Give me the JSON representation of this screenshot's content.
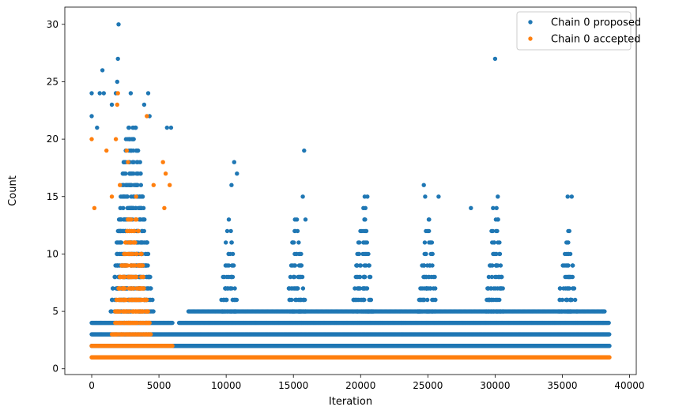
{
  "chart_data": {
    "type": "scatter",
    "title": "",
    "xlabel": "Iteration",
    "ylabel": "Count",
    "xlim": [
      -2000,
      40500
    ],
    "ylim": [
      -0.5,
      31.5
    ],
    "x_ticks": [
      0,
      5000,
      10000,
      15000,
      20000,
      25000,
      30000,
      35000,
      40000
    ],
    "y_ticks": [
      0,
      5,
      10,
      15,
      20,
      25,
      30
    ],
    "x_tick_labels": [
      "0",
      "5000",
      "10000",
      "15000",
      "20000",
      "25000",
      "30000",
      "35000",
      "40000"
    ],
    "y_tick_labels": [
      "0",
      "5",
      "10",
      "15",
      "20",
      "25",
      "30"
    ],
    "grid": false,
    "legend_position": "top-right",
    "series": [
      {
        "name": "Chain 0 proposed",
        "color": "#1f77b4",
        "bands": [
          {
            "y": 2,
            "x": [
              0,
              38500
            ],
            "step": 20
          },
          {
            "y": 3,
            "x": [
              0,
              38500
            ],
            "step": 30
          },
          {
            "y": 4,
            "x": [
              0,
              6000
            ],
            "step": 50
          },
          {
            "y": 4,
            "x": [
              6500,
              38500
            ],
            "step": 55
          },
          {
            "y": 5,
            "x": [
              7200,
              38200
            ],
            "step": 70
          }
        ],
        "peaks": [
          {
            "center": 3000,
            "width": 3200,
            "ymax": 21,
            "density": 0.9
          },
          {
            "center": 10200,
            "width": 1300,
            "ymax": 12,
            "density": 0.55
          },
          {
            "center": 15200,
            "width": 1500,
            "ymax": 13,
            "density": 0.55
          },
          {
            "center": 20200,
            "width": 1600,
            "ymax": 14,
            "density": 0.55
          },
          {
            "center": 25000,
            "width": 1500,
            "ymax": 13,
            "density": 0.55
          },
          {
            "center": 30000,
            "width": 1400,
            "ymax": 14,
            "density": 0.55
          },
          {
            "center": 35400,
            "width": 1500,
            "ymax": 12,
            "density": 0.5
          }
        ],
        "outliers": [
          {
            "x": 2000,
            "y": 30
          },
          {
            "x": 1950,
            "y": 27
          },
          {
            "x": 30000,
            "y": 27
          },
          {
            "x": 800,
            "y": 26
          },
          {
            "x": 1900,
            "y": 25
          },
          {
            "x": 0,
            "y": 24
          },
          {
            "x": 600,
            "y": 24
          },
          {
            "x": 900,
            "y": 24
          },
          {
            "x": 1800,
            "y": 24
          },
          {
            "x": 2900,
            "y": 24
          },
          {
            "x": 4200,
            "y": 24
          },
          {
            "x": 3900,
            "y": 23
          },
          {
            "x": 1500,
            "y": 23
          },
          {
            "x": 0,
            "y": 22
          },
          {
            "x": 4300,
            "y": 22
          },
          {
            "x": 400,
            "y": 21
          },
          {
            "x": 5600,
            "y": 21
          },
          {
            "x": 5900,
            "y": 21
          },
          {
            "x": 15800,
            "y": 19
          },
          {
            "x": 10600,
            "y": 18
          },
          {
            "x": 10800,
            "y": 17
          },
          {
            "x": 10400,
            "y": 16
          },
          {
            "x": 24700,
            "y": 16
          },
          {
            "x": 15700,
            "y": 15
          },
          {
            "x": 24800,
            "y": 15
          },
          {
            "x": 25800,
            "y": 15
          },
          {
            "x": 30200,
            "y": 15
          },
          {
            "x": 35400,
            "y": 15
          },
          {
            "x": 35700,
            "y": 15
          },
          {
            "x": 20300,
            "y": 15
          },
          {
            "x": 20500,
            "y": 15
          },
          {
            "x": 28200,
            "y": 14
          },
          {
            "x": 10200,
            "y": 13
          },
          {
            "x": 15900,
            "y": 13
          }
        ]
      },
      {
        "name": "Chain 0 accepted",
        "color": "#ff7f0e",
        "bands": [
          {
            "y": 1,
            "x": [
              0,
              38500
            ],
            "step": 20
          },
          {
            "y": 2,
            "x": [
              0,
              6000
            ],
            "step": 80
          }
        ],
        "peaks": [
          {
            "center": 3000,
            "width": 3000,
            "ymax": 13,
            "density": 0.95
          }
        ],
        "outliers": [
          {
            "x": 1950,
            "y": 24
          },
          {
            "x": 1900,
            "y": 23
          },
          {
            "x": 4100,
            "y": 22
          },
          {
            "x": 0,
            "y": 20
          },
          {
            "x": 1800,
            "y": 20
          },
          {
            "x": 1100,
            "y": 19
          },
          {
            "x": 2600,
            "y": 19
          },
          {
            "x": 2700,
            "y": 18
          },
          {
            "x": 5300,
            "y": 18
          },
          {
            "x": 5500,
            "y": 17
          },
          {
            "x": 2100,
            "y": 16
          },
          {
            "x": 4600,
            "y": 16
          },
          {
            "x": 5800,
            "y": 16
          },
          {
            "x": 1500,
            "y": 15
          },
          {
            "x": 3300,
            "y": 15
          },
          {
            "x": 200,
            "y": 14
          },
          {
            "x": 5400,
            "y": 14
          }
        ]
      }
    ]
  }
}
